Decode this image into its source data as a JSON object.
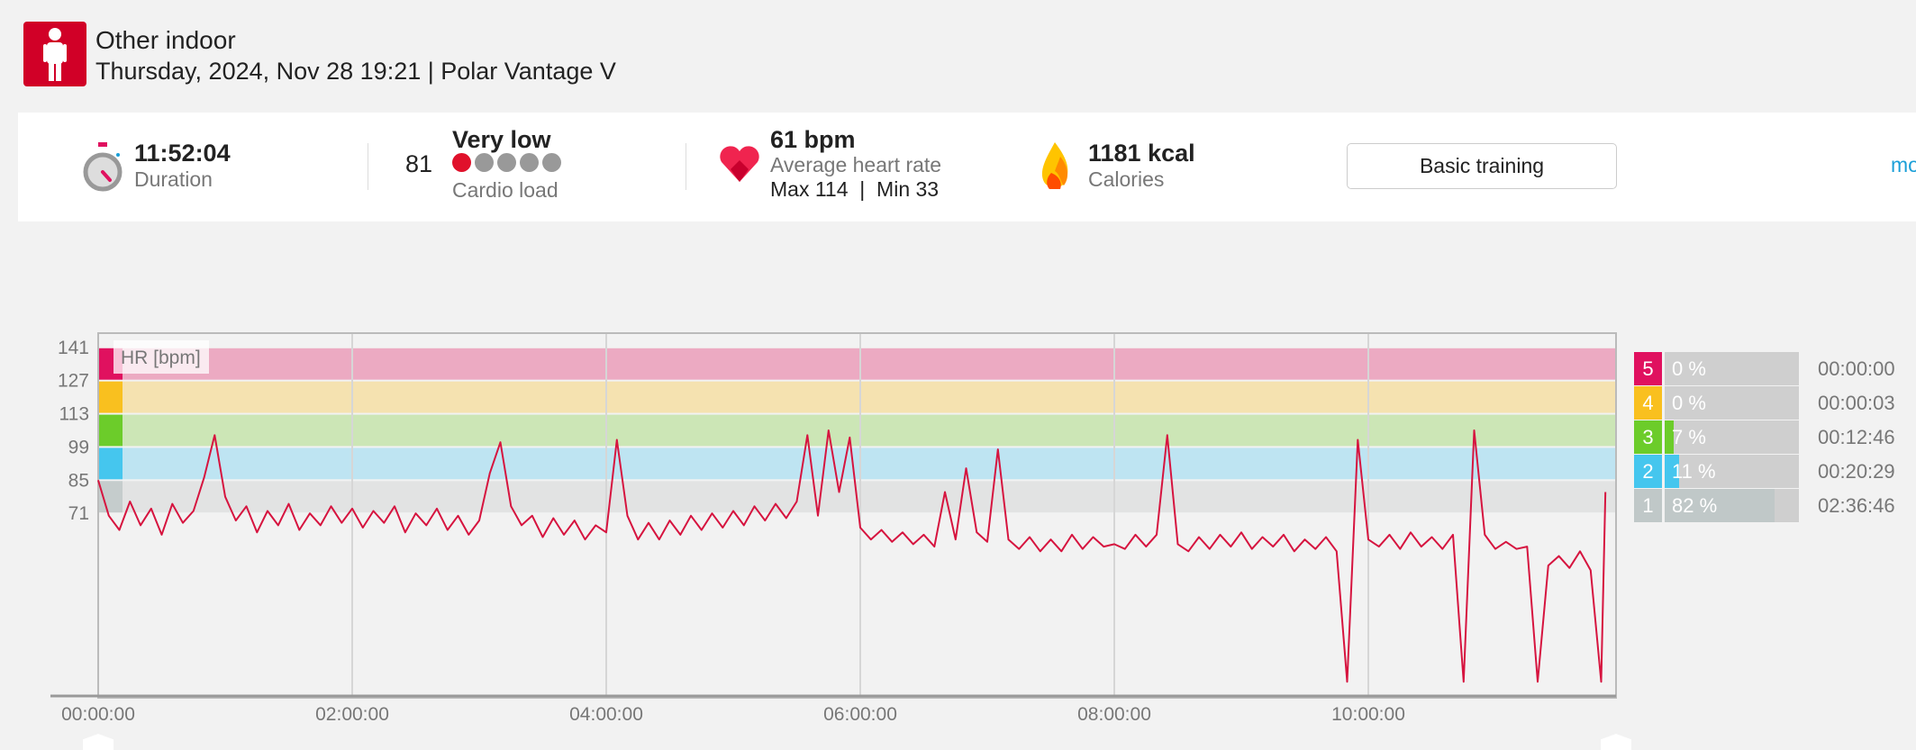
{
  "header": {
    "sport": "Other indoor",
    "subtitle": "Thursday, 2024, Nov 28 19:21 | Polar Vantage V",
    "sport_icon": "person-standing-icon"
  },
  "summary": {
    "duration": {
      "value": "11:52:04",
      "label": "Duration",
      "icon": "stopwatch-icon"
    },
    "cardio": {
      "score": "81",
      "level": "Very low",
      "label": "Cardio load",
      "filled_dots": 1,
      "total_dots": 5
    },
    "heart_rate": {
      "value": "61 bpm",
      "label": "Average heart rate",
      "max_min": "Max 114  |  Min 33",
      "icon": "heart-icon"
    },
    "calories": {
      "value": "1181 kcal",
      "label": "Calories",
      "icon": "flame-icon"
    },
    "button": "Basic training",
    "more_link": "mo"
  },
  "colors": {
    "accent": "#d10027",
    "line": "#d6143f",
    "link": "#1a9fd8"
  },
  "chart_data": {
    "type": "line",
    "title": "HR [bpm]",
    "ylabel": "HR [bpm]",
    "y_ticks": [
      "141",
      "127",
      "113",
      "99",
      "85",
      "71"
    ],
    "x_ticks": [
      "00:00:00",
      "02:00:00",
      "04:00:00",
      "06:00:00",
      "08:00:00",
      "10:00:00"
    ],
    "x_tick_minutes": [
      0,
      120,
      240,
      360,
      480,
      600
    ],
    "xlim_minutes": [
      0,
      712
    ],
    "ylim": [
      -6,
      147
    ],
    "zone_bounds": [
      71,
      85,
      99,
      113,
      127,
      141
    ],
    "zone_band_colors": [
      "#e2e3e3",
      "#bee4f2",
      "#cce6b6",
      "#f5e2b0",
      "#ecaac2"
    ],
    "zone_strip_colors": [
      "#c5cccc",
      "#45c6ee",
      "#6ccc2a",
      "#f9c01f",
      "#e0115f"
    ],
    "sample_interval_minutes": 5,
    "hr": [
      85,
      70,
      64,
      76,
      66,
      73,
      62,
      75,
      67,
      72,
      86,
      104,
      78,
      68,
      74,
      63,
      72,
      66,
      75,
      64,
      71,
      66,
      74,
      67,
      73,
      65,
      72,
      67,
      74,
      63,
      71,
      66,
      73,
      64,
      70,
      62,
      68,
      88,
      101,
      74,
      66,
      70,
      61,
      69,
      62,
      68,
      60,
      66,
      63,
      102,
      70,
      60,
      67,
      60,
      68,
      62,
      70,
      64,
      71,
      65,
      72,
      66,
      74,
      68,
      75,
      69,
      76,
      104,
      70,
      106,
      80,
      103,
      65,
      60,
      64,
      59,
      63,
      58,
      62,
      57,
      80,
      60,
      90,
      63,
      59,
      98,
      60,
      56,
      61,
      55,
      60,
      55,
      62,
      56,
      61,
      57,
      58,
      56,
      62,
      57,
      62,
      104,
      58,
      55,
      61,
      56,
      62,
      57,
      63,
      56,
      61,
      57,
      62,
      55,
      60,
      56,
      61,
      55,
      0,
      102,
      60,
      57,
      62,
      56,
      63,
      57,
      61,
      56,
      62,
      0,
      106,
      62,
      56,
      59,
      56,
      57,
      0,
      49,
      53,
      48,
      55,
      47,
      0,
      80
    ]
  },
  "zones": [
    {
      "zone": "5",
      "percent": "0 %",
      "time": "00:00:00",
      "fraction": 0,
      "color": "#e0115f",
      "fill": "#e0115f"
    },
    {
      "zone": "4",
      "percent": "0 %",
      "time": "00:00:03",
      "fraction": 0,
      "color": "#f9c01f",
      "fill": "#f9c01f"
    },
    {
      "zone": "3",
      "percent": "7 %",
      "time": "00:12:46",
      "fraction": 0.07,
      "color": "#6ccc2a",
      "fill": "#6ccc2a"
    },
    {
      "zone": "2",
      "percent": "11 %",
      "time": "00:20:29",
      "fraction": 0.11,
      "color": "#45c6ee",
      "fill": "#45c6ee"
    },
    {
      "zone": "1",
      "percent": "82 %",
      "time": "02:36:46",
      "fraction": 0.82,
      "color": "#c0c8c8",
      "fill": "#c0c8c8"
    }
  ]
}
